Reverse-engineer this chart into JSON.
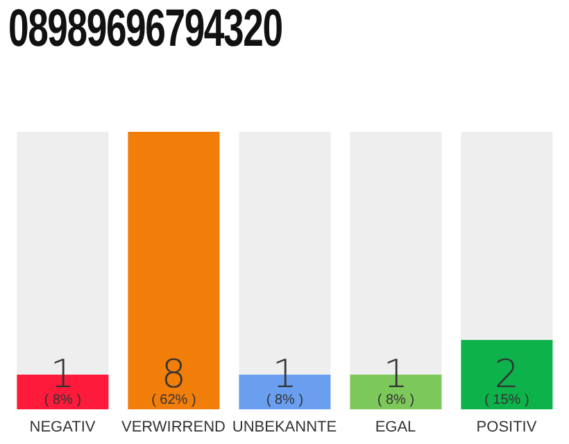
{
  "chart_data": {
    "type": "bar",
    "title": "08989696794320",
    "categories": [
      "NEGATIV",
      "VERWIRREND",
      "UNBEKANNTE",
      "EGAL",
      "POSITIV"
    ],
    "values": [
      1,
      8,
      1,
      1,
      2
    ],
    "colors": [
      "#fe1a3a",
      "#f27e0a",
      "#6a9eef",
      "#7dc85a",
      "#0db24a"
    ],
    "ylim": [
      0,
      8
    ],
    "data_labels": true,
    "annotations": [
      "( 8% )",
      "( 62% )",
      "( 8% )",
      "( 8% )",
      "( 15% )"
    ]
  }
}
